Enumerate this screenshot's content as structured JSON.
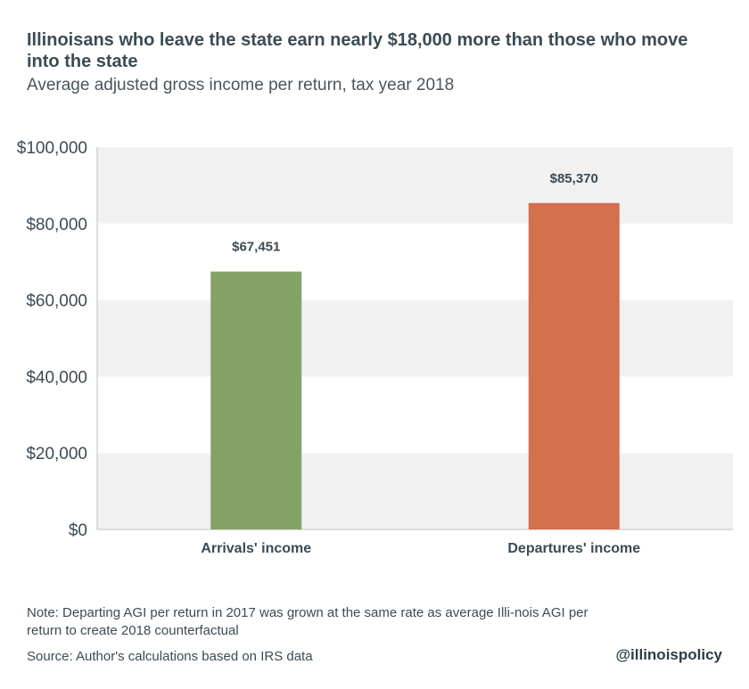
{
  "chart_data": {
    "type": "bar",
    "title": "Illinoisans who leave the state earn nearly $18,000 more than those who move into the state",
    "subtitle": "Average adjusted gross income per return, tax year 2018",
    "categories": [
      "Arrivals' income",
      "Departures' income"
    ],
    "values": [
      67451,
      85370
    ],
    "data_labels": [
      "$67,451",
      "$85,370"
    ],
    "bar_colors": [
      "#84a266",
      "#d4704d"
    ],
    "ylim": [
      0,
      100000
    ],
    "yticks": [
      0,
      20000,
      40000,
      60000,
      80000,
      100000
    ],
    "ytick_labels": [
      "$0",
      "$20,000",
      "$40,000",
      "$60,000",
      "$80,000",
      "$100,000"
    ],
    "xlabel": "",
    "ylabel": "",
    "grid": "alternating horizontal bands",
    "legend": "none"
  },
  "footer": {
    "note": "Note: Departing AGI per return in 2017 was grown at the same rate as average Illi-nois AGI per return to create 2018 counterfactual",
    "source": "Source:  Author's calculations based on IRS data",
    "handle": "@illinoispolicy"
  },
  "colors": {
    "band": "#f1f1f1",
    "axis": "#d4d4d4",
    "text": "#3d4a52"
  }
}
